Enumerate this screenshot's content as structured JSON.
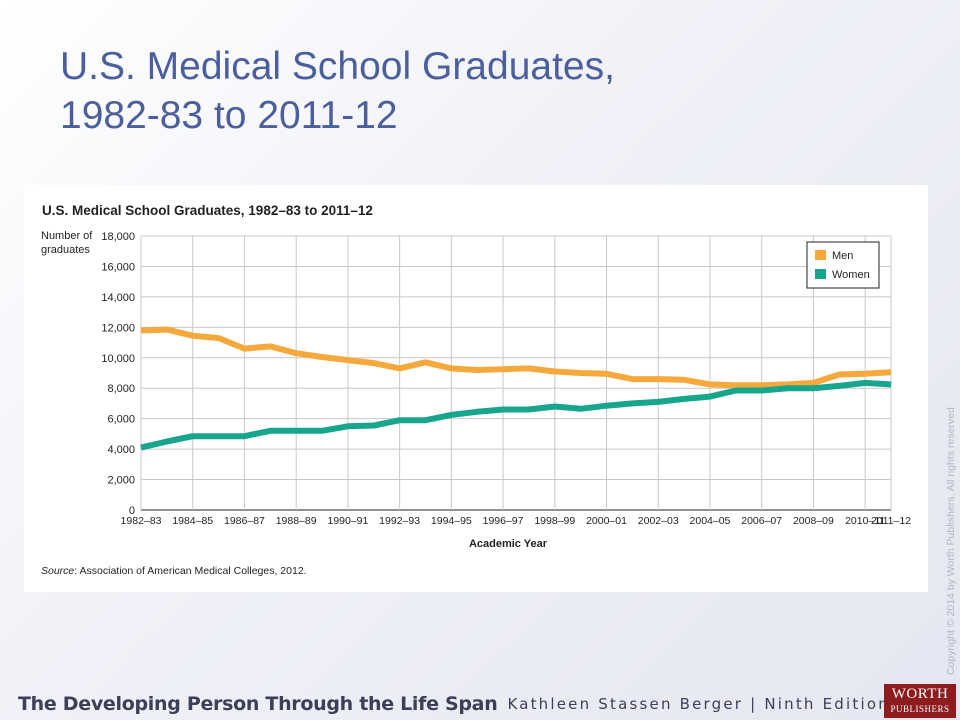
{
  "slide": {
    "title_line1": "U.S. Medical School Graduates,",
    "title_line2": "1982-83 to 2011-12"
  },
  "copyright": "Copyright © 2014 by Worth Publishers. All rights reserved",
  "footer": {
    "book_title": "The Developing Person Through the Life Span",
    "author_edition": "Kathleen Stassen Berger | Ninth Edition",
    "logo_line1": "WORTH",
    "logo_line2": "PUBLISHERS"
  },
  "chart_data": {
    "type": "line",
    "title": "U.S. Medical School Graduates, 1982–83 to 2011–12",
    "ylabel_line1": "Number of",
    "ylabel_line2": "graduates",
    "xlabel": "Academic Year",
    "source_prefix": "Source",
    "source_text": ": Association of American Medical Colleges, 2012.",
    "ylim": [
      0,
      18000
    ],
    "yticks": [
      "18,000",
      "16,000",
      "14,000",
      "12,000",
      "10,000",
      "8,000",
      "6,000",
      "4,000",
      "2,000",
      "0"
    ],
    "ytick_values": [
      18000,
      16000,
      14000,
      12000,
      10000,
      8000,
      6000,
      4000,
      2000,
      0
    ],
    "x": [
      "1982–83",
      "1983–84",
      "1984–85",
      "1985–86",
      "1986–87",
      "1987–88",
      "1988–89",
      "1989–90",
      "1990–91",
      "1991–92",
      "1992–93",
      "1993–94",
      "1994–95",
      "1995–96",
      "1996–97",
      "1997–98",
      "1998–99",
      "1999–00",
      "2000–01",
      "2001–02",
      "2002–03",
      "2003–04",
      "2004–05",
      "2005–06",
      "2006–07",
      "2007–08",
      "2008–09",
      "2009–10",
      "2010–11",
      "2011–12"
    ],
    "xtick_labels": [
      "1982–83",
      "1984–85",
      "1986–87",
      "1988–89",
      "1990–91",
      "1992–93",
      "1994–95",
      "1996–97",
      "1998–99",
      "2000–01",
      "2002–03",
      "2004–05",
      "2006–07",
      "2008–09",
      "2010–11",
      "2011–12"
    ],
    "xtick_indices": [
      0,
      2,
      4,
      6,
      8,
      10,
      12,
      14,
      16,
      18,
      20,
      22,
      24,
      26,
      28,
      29
    ],
    "grid": true,
    "legend_position": "top-right",
    "series": [
      {
        "name": "Men",
        "color": "#f5a93c",
        "values": [
          11800,
          11850,
          11450,
          11300,
          10600,
          10750,
          10300,
          10050,
          9850,
          9650,
          9300,
          9700,
          9300,
          9200,
          9250,
          9300,
          9100,
          9000,
          8950,
          8600,
          8600,
          8550,
          8250,
          8200,
          8200,
          8250,
          8350,
          8900,
          8950,
          9050
        ]
      },
      {
        "name": "Women",
        "color": "#17a68d",
        "values": [
          4100,
          4500,
          4850,
          4850,
          4850,
          5200,
          5200,
          5200,
          5500,
          5550,
          5900,
          5900,
          6250,
          6450,
          6600,
          6600,
          6800,
          6650,
          6850,
          7000,
          7100,
          7300,
          7450,
          7850,
          7850,
          8000,
          8000,
          8150,
          8350,
          8250
        ]
      }
    ]
  }
}
